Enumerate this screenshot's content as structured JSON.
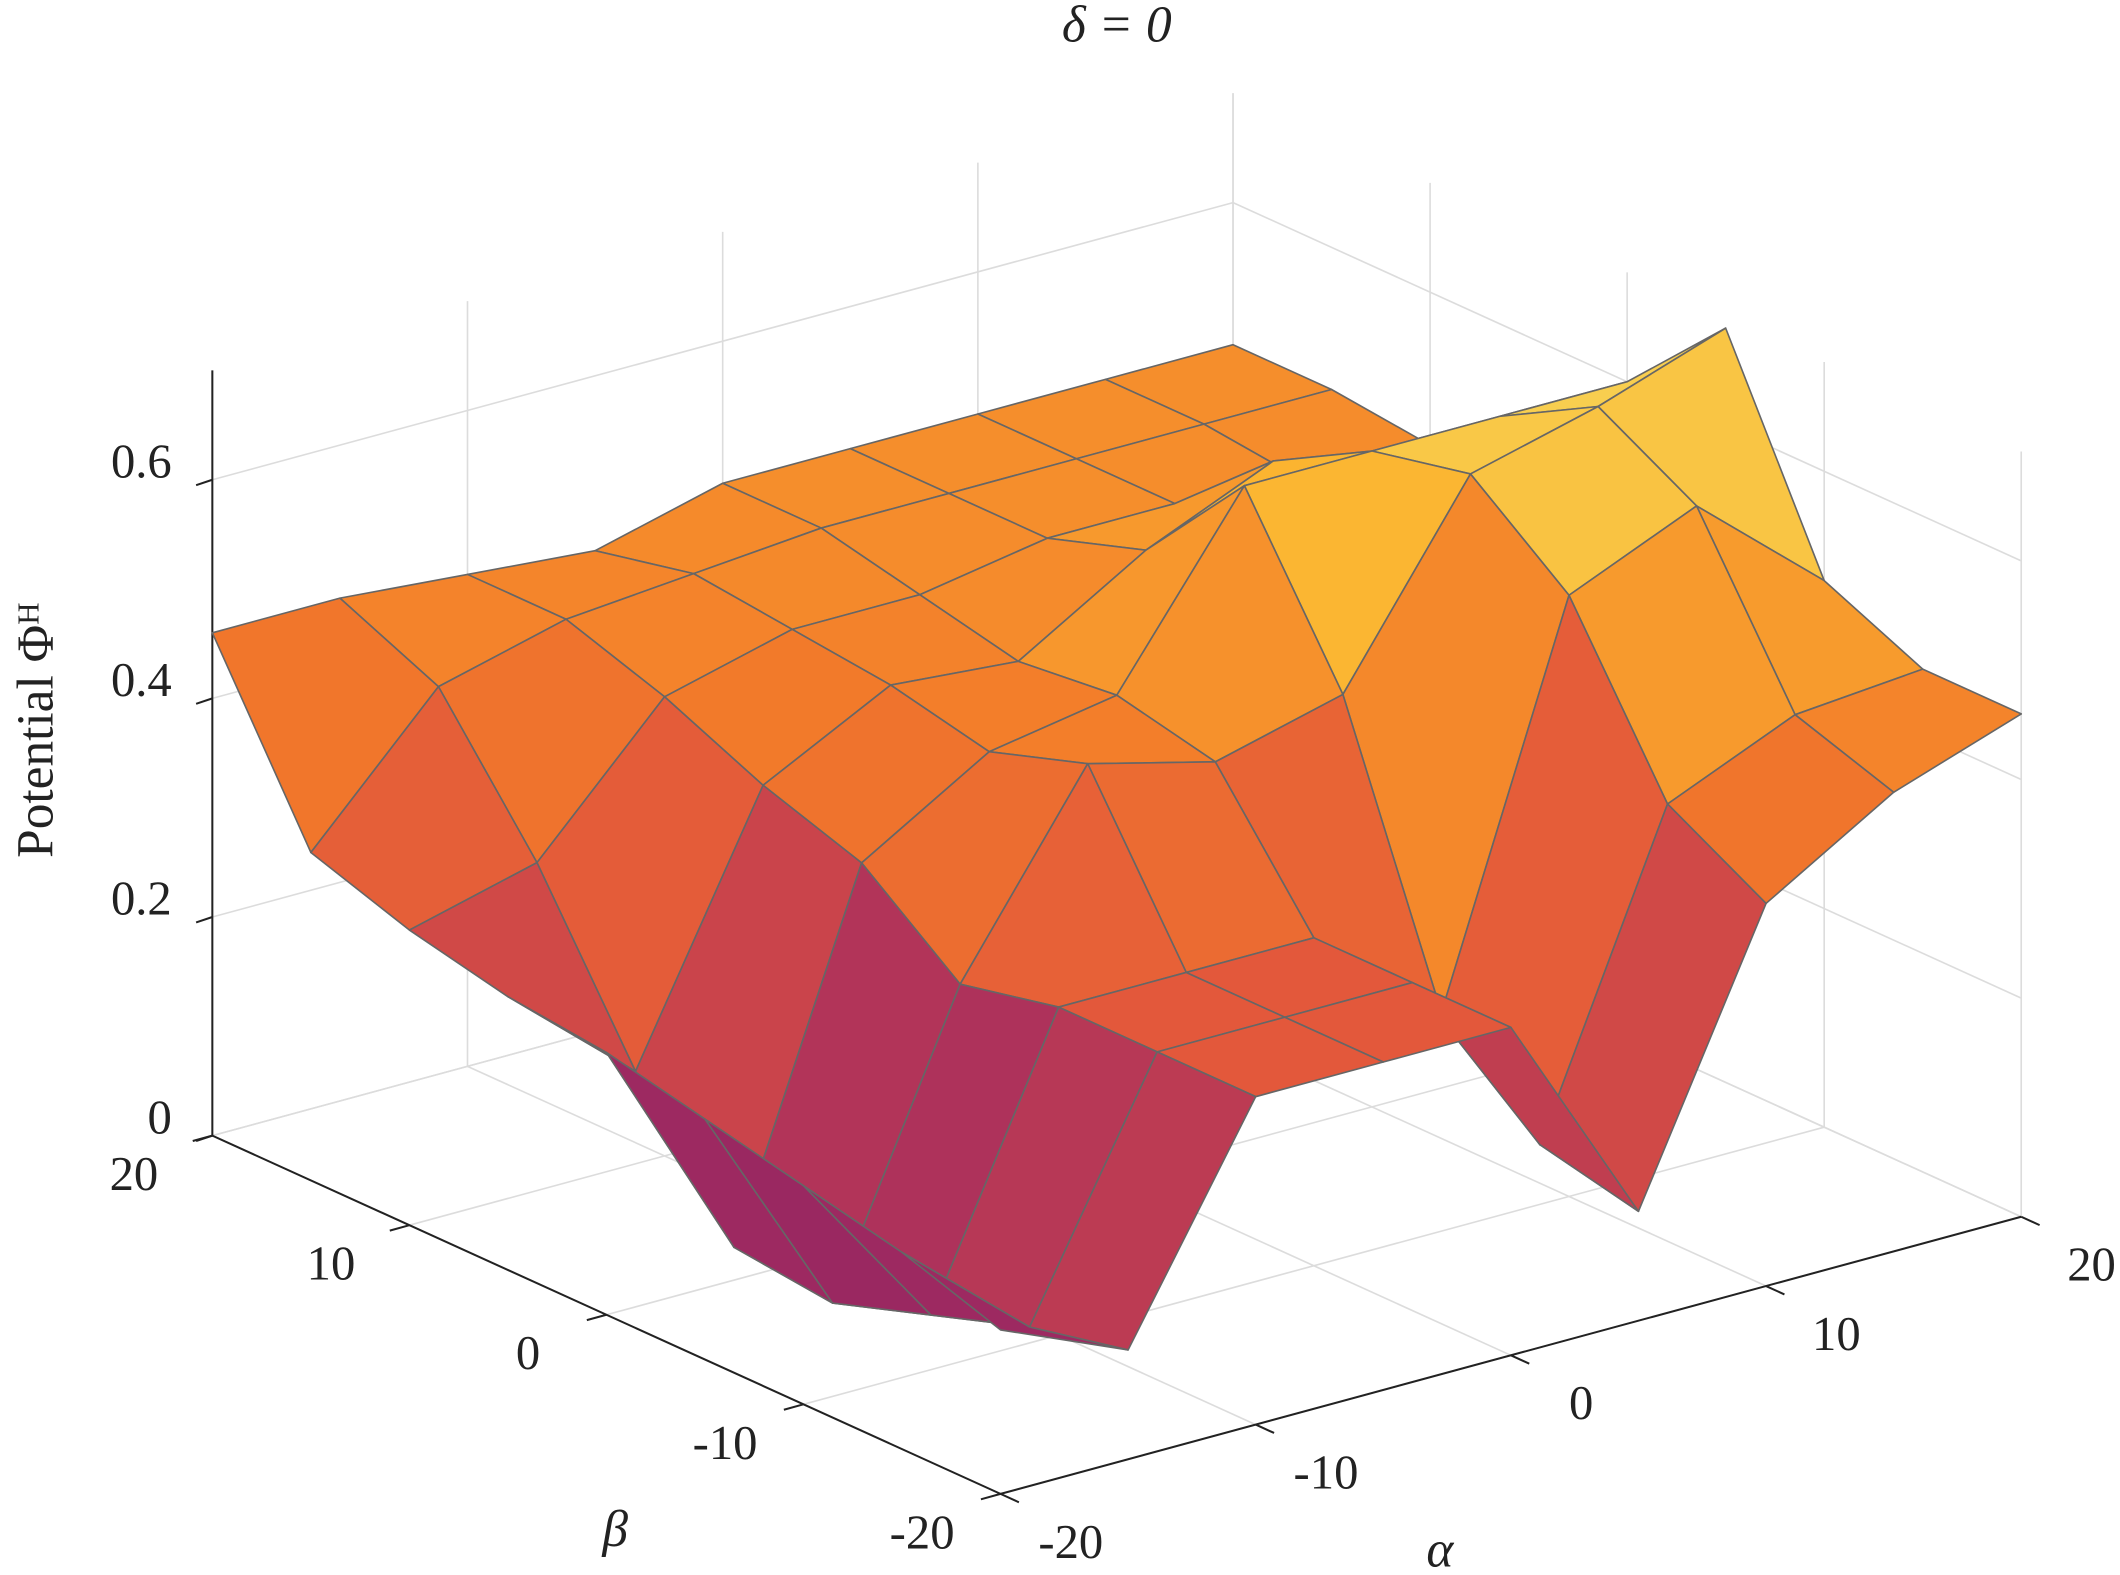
{
  "chart_data": {
    "type": "surface",
    "title": "δ = 0",
    "xlabel": "α",
    "ylabel": "β",
    "zlabel": "Potential Φᴴ",
    "x": [
      -20,
      -15,
      -10,
      -5,
      0,
      5,
      10,
      15,
      20
    ],
    "y": [
      -20,
      -15,
      -10,
      -5,
      0,
      5,
      10,
      15,
      20
    ],
    "z": [
      [
        0.15,
        0.1,
        0.3,
        0.3,
        0.3,
        0.1,
        0.35,
        0.42,
        0.46
      ],
      [
        0.18,
        0.08,
        0.3,
        0.3,
        0.3,
        0.12,
        0.4,
        0.45,
        0.46
      ],
      [
        0.2,
        0.05,
        0.3,
        0.3,
        0.3,
        0.2,
        0.55,
        0.6,
        0.5
      ],
      [
        0.22,
        0.02,
        0.28,
        0.45,
        0.42,
        0.45,
        0.62,
        0.65,
        0.69
      ],
      [
        0.24,
        0.03,
        0.35,
        0.42,
        0.44,
        0.6,
        0.6,
        0.6,
        0.6
      ],
      [
        0.25,
        0.15,
        0.38,
        0.44,
        0.43,
        0.5,
        0.55,
        0.5,
        0.47
      ],
      [
        0.27,
        0.3,
        0.42,
        0.45,
        0.45,
        0.47,
        0.47,
        0.46,
        0.46
      ],
      [
        0.3,
        0.42,
        0.45,
        0.46,
        0.47,
        0.47,
        0.47,
        0.47,
        0.47
      ],
      [
        0.46,
        0.46,
        0.45,
        0.44,
        0.47,
        0.47,
        0.47,
        0.47,
        0.47
      ]
    ],
    "xlim": [
      -20,
      20
    ],
    "ylim": [
      -20,
      20
    ],
    "zlim": [
      0,
      0.7
    ],
    "xticks": [
      -20,
      -10,
      0,
      10,
      20
    ],
    "yticks": [
      -20,
      -10,
      0,
      10,
      20
    ],
    "zticks": [
      0,
      0.2,
      0.4,
      0.6
    ],
    "grid": true,
    "colormap": [
      "#4a0c6b",
      "#a52c60",
      "#e0533e",
      "#f2792a",
      "#fbb32f",
      "#f5e66a"
    ],
    "edgecolor": "#666666"
  }
}
